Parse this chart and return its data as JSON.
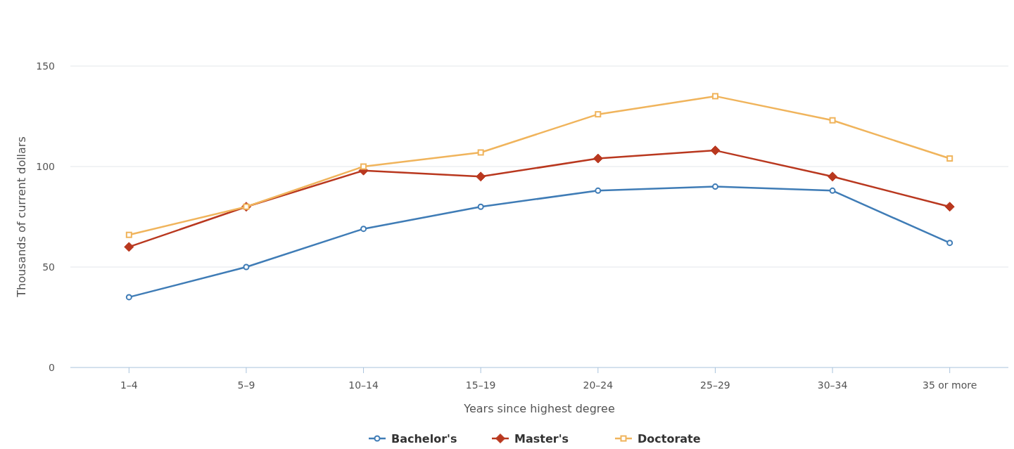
{
  "chart_data": {
    "type": "line",
    "xlabel": "Years since highest degree",
    "ylabel": "Thousands of current dollars",
    "categories": [
      "1–4",
      "5–9",
      "10–14",
      "15–19",
      "20–24",
      "25–29",
      "30–34",
      "35 or more"
    ],
    "ylim": [
      0,
      150
    ],
    "yticks": [
      0,
      50,
      100,
      150
    ],
    "grid": "y",
    "legend": "bottom",
    "series": [
      {
        "name": "Bachelor's",
        "color": "#3f7cb6",
        "marker": "circle",
        "values": [
          35,
          50,
          69,
          80,
          88,
          90,
          88,
          62
        ]
      },
      {
        "name": "Master's",
        "color": "#b9381f",
        "marker": "diamond",
        "values": [
          60,
          80,
          98,
          95,
          104,
          108,
          95,
          80
        ]
      },
      {
        "name": "Doctorate",
        "color": "#f0b45c",
        "marker": "square",
        "values": [
          66,
          80,
          100,
          107,
          126,
          135,
          123,
          104
        ]
      }
    ]
  }
}
